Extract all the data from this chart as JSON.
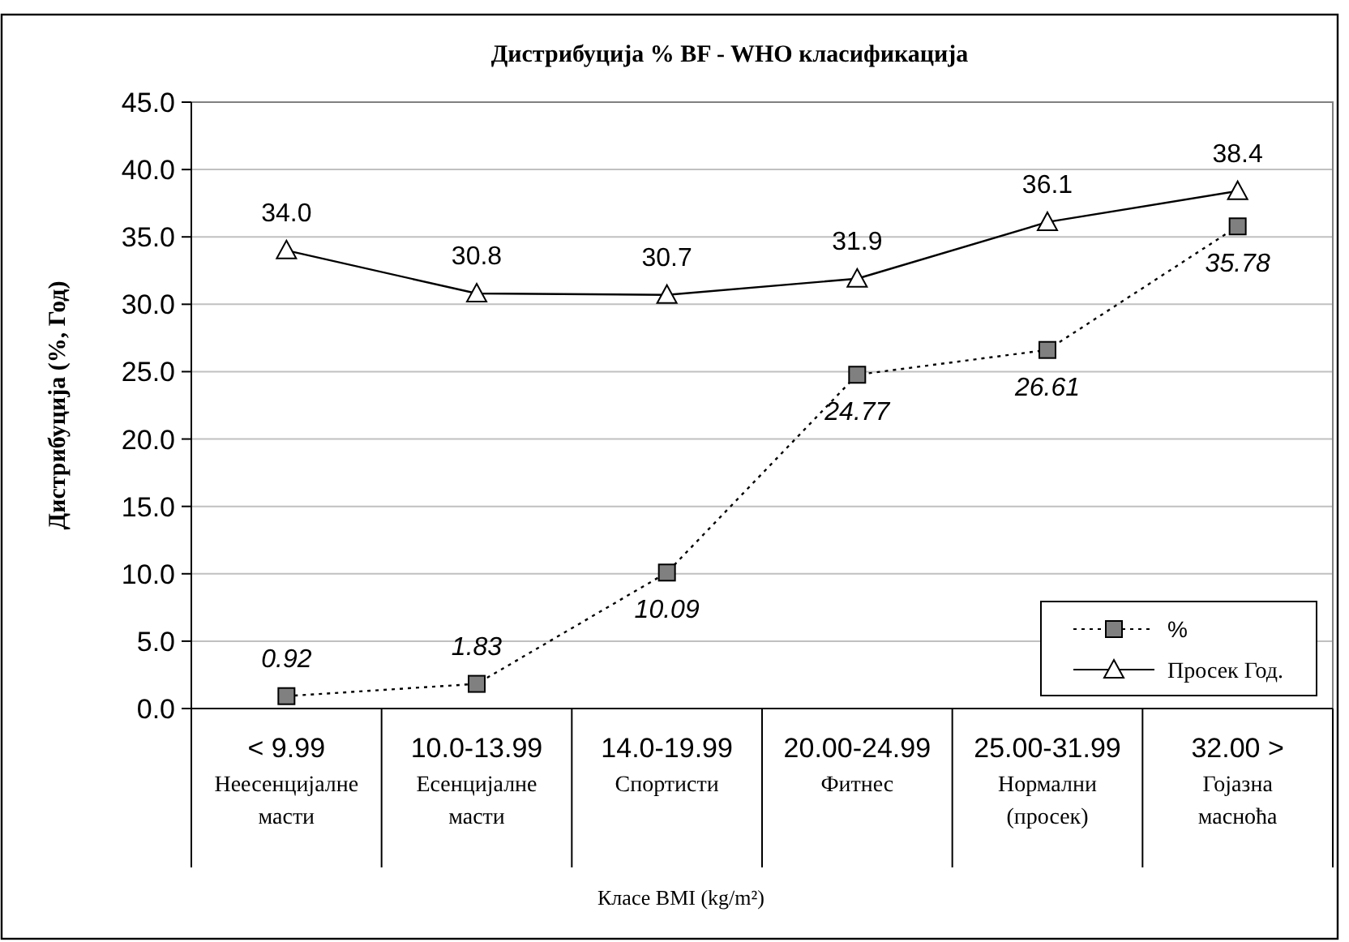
{
  "chart_data": {
    "type": "line",
    "title": "Дистрибуција % BF - WHO класификација",
    "xlabel": "Класе BMI (kg/m²)",
    "ylabel": "Дистрибуција (%, Год)",
    "categories": [
      "< 9.99\nНеесенцијалне\nмасти",
      "10.0-13.99\nЕсенцијалне\nмасти",
      "14.0-19.99\nСпортисти",
      "20.00-24.99\nФитнес",
      "25.00-31.99\nНормални\n(просек)",
      "32.00 >\nГојазна\nмасноћа"
    ],
    "series": [
      {
        "name": "%",
        "color": "#808080",
        "values": [
          0.92,
          1.83,
          10.09,
          24.77,
          26.61,
          35.78
        ],
        "marker": "square",
        "line_style": "dotted",
        "value_labels": [
          "0.92",
          "1.83",
          "10.09",
          "24.77",
          "26.61",
          "35.78"
        ]
      },
      {
        "name": "Просек Год.",
        "color": "#000000",
        "values": [
          34.0,
          30.8,
          30.7,
          31.9,
          36.1,
          38.4
        ],
        "marker": "triangle",
        "line_style": "solid",
        "value_labels": [
          "34.0",
          "30.8",
          "30.7",
          "31.9",
          "36.1",
          "38.4"
        ]
      }
    ],
    "ylim": [
      0,
      45
    ],
    "yticks": [
      {
        "value": 0,
        "label": "0.0"
      },
      {
        "value": 5,
        "label": "5.0"
      },
      {
        "value": 10,
        "label": "10.0"
      },
      {
        "value": 15,
        "label": "15.0"
      },
      {
        "value": 20,
        "label": "20.0"
      },
      {
        "value": 25,
        "label": "25.0"
      },
      {
        "value": 30,
        "label": "30.0"
      },
      {
        "value": 35,
        "label": "35.0"
      },
      {
        "value": 40,
        "label": "40.0"
      },
      {
        "value": 45,
        "label": "45.0"
      }
    ],
    "grid": "y",
    "legend": "bottom right"
  }
}
